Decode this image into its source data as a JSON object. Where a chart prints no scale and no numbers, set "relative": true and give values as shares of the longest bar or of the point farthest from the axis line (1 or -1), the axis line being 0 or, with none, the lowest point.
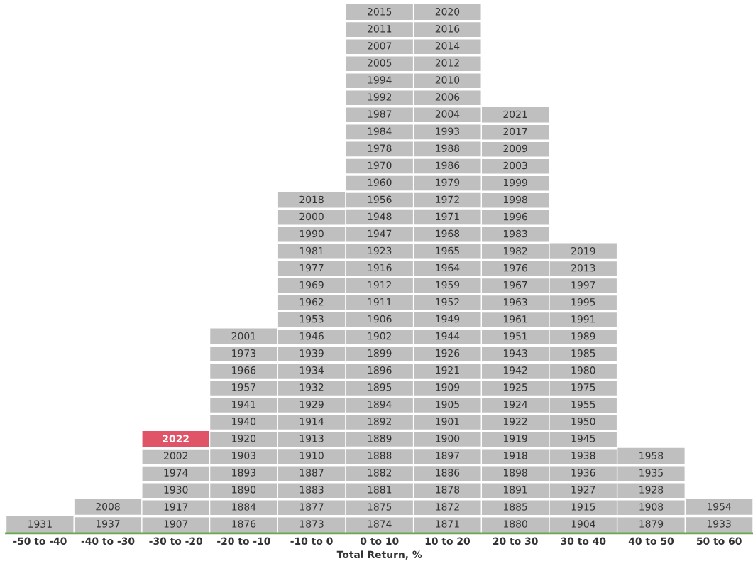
{
  "chart_data": {
    "type": "bar",
    "stacked": true,
    "relative": true,
    "xlabel": "Total Return, %",
    "categories": [
      "-50 to -40",
      "-40 to -30",
      "-30 to -20",
      "-20 to -10",
      "-10 to 0",
      "0 to 10",
      "10 to 20",
      "20 to 30",
      "30 to 40",
      "40 to 50",
      "50 to 60"
    ],
    "series": [
      {
        "color": "#bfbfbf",
        "values": [
          0.032,
          0.065,
          0.161,
          0.387,
          0.645,
          1,
          1,
          0.806,
          0.548,
          0.161,
          0.065
        ]
      },
      {
        "color": "#e05468",
        "values": [
          null,
          null,
          0.032,
          null,
          null,
          null,
          null,
          null,
          null,
          null,
          null
        ]
      }
    ],
    "annotations": [
      "1931",
      "1937",
      "2008",
      "1907",
      "1917",
      "1930",
      "1974",
      "2002",
      "2022",
      "1876",
      "1884",
      "1890",
      "1893",
      "1903",
      "1920",
      "1940",
      "1941",
      "1957",
      "1966",
      "1973",
      "2001",
      "1873",
      "1877",
      "1883",
      "1887",
      "1910",
      "1913",
      "1914",
      "1929",
      "1932",
      "1934",
      "1939",
      "1946",
      "1953",
      "1962",
      "1969",
      "1977",
      "1981",
      "1990",
      "2000",
      "2018",
      "1874",
      "1875",
      "1881",
      "1882",
      "1888",
      "1889",
      "1892",
      "1894",
      "1895",
      "1896",
      "1899",
      "1902",
      "1906",
      "1911",
      "1912",
      "1916",
      "1923",
      "1947",
      "1948",
      "1956",
      "1960",
      "1970",
      "1978",
      "1984",
      "1987",
      "1992",
      "1994",
      "2005",
      "2007",
      "2011",
      "2015",
      "1871",
      "1872",
      "1878",
      "1886",
      "1897",
      "1900",
      "1901",
      "1905",
      "1909",
      "1921",
      "1926",
      "1944",
      "1949",
      "1952",
      "1959",
      "1964",
      "1965",
      "1968",
      "1971",
      "1972",
      "1979",
      "1986",
      "1988",
      "1993",
      "2004",
      "2006",
      "2010",
      "2012",
      "2014",
      "2016",
      "2020",
      "1880",
      "1885",
      "1891",
      "1898",
      "1918",
      "1919",
      "1922",
      "1924",
      "1925",
      "1942",
      "1943",
      "1951",
      "1961",
      "1963",
      "1967",
      "1976",
      "1982",
      "1983",
      "1996",
      "1998",
      "1999",
      "2003",
      "2009",
      "2017",
      "2021",
      "1904",
      "1915",
      "1927",
      "1936",
      "1938",
      "1945",
      "1950",
      "1955",
      "1975",
      "1980",
      "1985",
      "1989",
      "1991",
      "1995",
      "1997",
      "2013",
      "2019",
      "1879",
      "1908",
      "1928",
      "1935",
      "1958",
      "1933",
      "1954"
    ]
  }
}
